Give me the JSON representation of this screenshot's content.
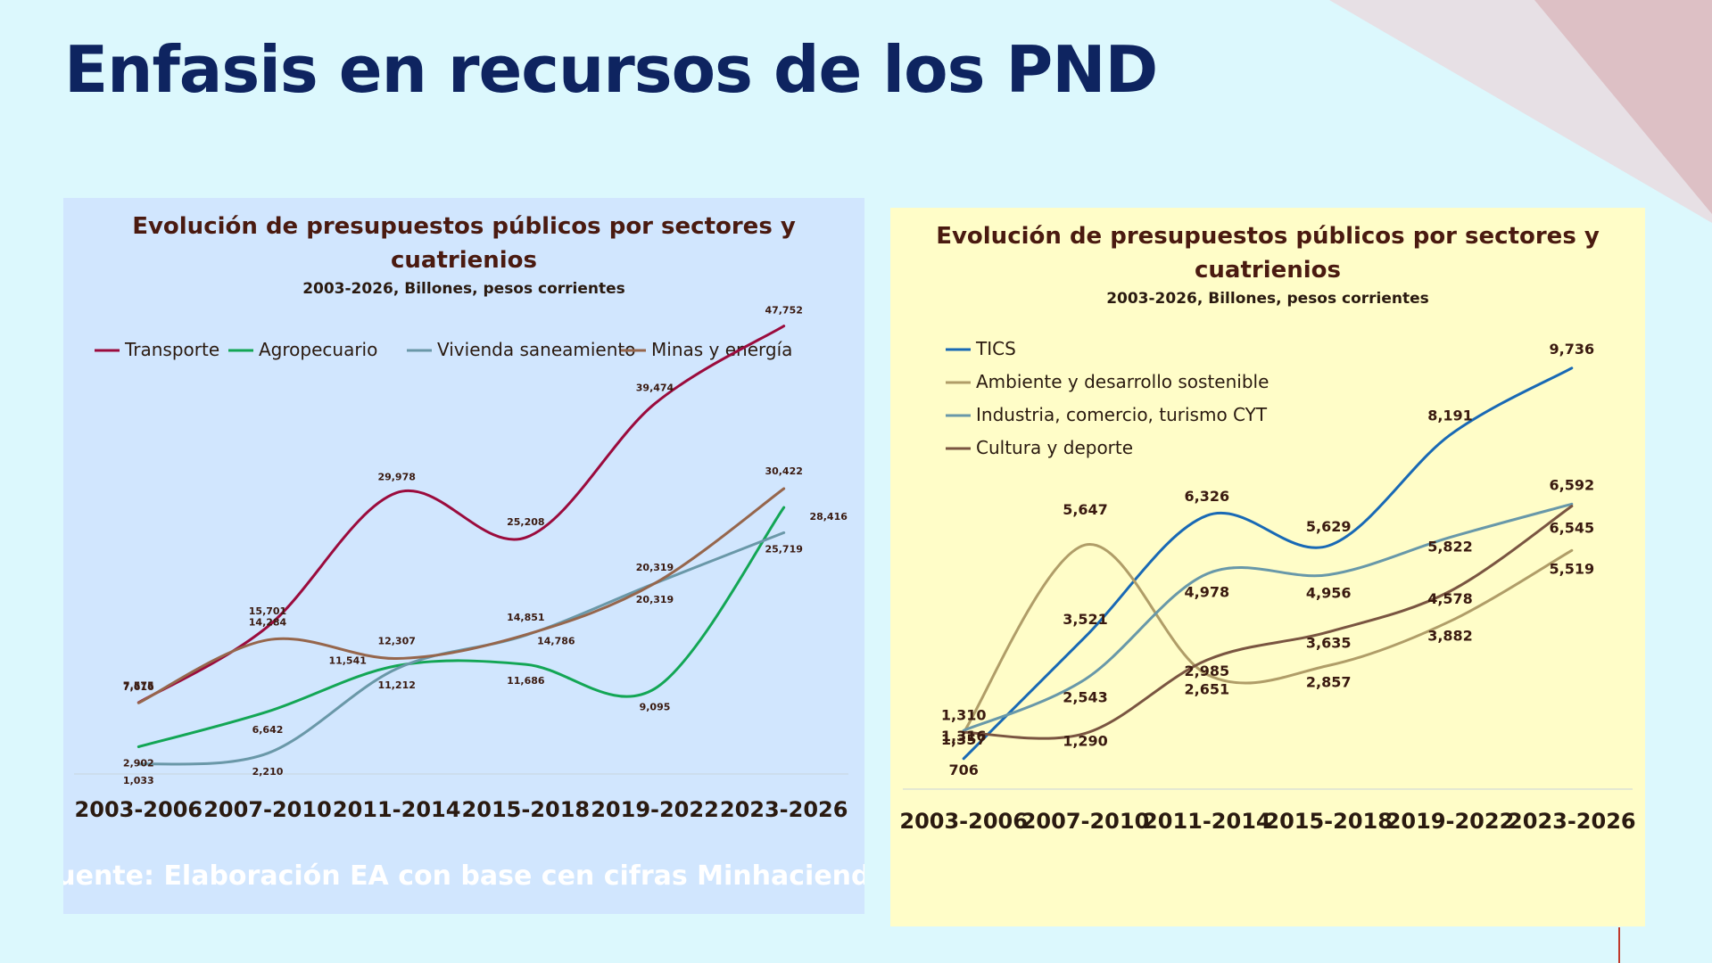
{
  "slide": {
    "title": "Enfasis en recursos de los PND"
  },
  "chart_data": [
    {
      "type": "line",
      "title": "Evolución de presupuestos públicos por sectores y cuatrienios",
      "subtitle": "2003-2026, Billones, pesos corrientes",
      "categories": [
        "2003-2006",
        "2007-2010",
        "2011-2014",
        "2015-2018",
        "2019-2022",
        "2023-2026"
      ],
      "ylim": [
        0,
        50000
      ],
      "grid": false,
      "legend": "top",
      "series": [
        {
          "name": "Transporte",
          "color": "#9b0b3d",
          "values": [
            7616,
            15701,
            29978,
            25208,
            39474,
            47752
          ],
          "labels": [
            "7,616",
            "15,701",
            "29,978",
            "25,208",
            "39,474",
            "47,752"
          ]
        },
        {
          "name": "Agropecuario",
          "color": "#13a655",
          "values": [
            2902,
            6642,
            11541,
            11686,
            9095,
            28416
          ],
          "labels": [
            "2,902",
            "6,642",
            "11,541",
            "11,686",
            "9,095",
            "28,416"
          ]
        },
        {
          "name": "Vivienda saneamiento",
          "color": "#6a98a8",
          "values": [
            1033,
            2210,
            11212,
            14786,
            20319,
            25719
          ],
          "labels": [
            "1,033",
            "2,210",
            "11,212",
            "14,786",
            "20,319",
            "25,719"
          ]
        },
        {
          "name": "Minas y energía",
          "color": "#96664c",
          "values": [
            7575,
            14284,
            12307,
            14851,
            20319,
            30422
          ],
          "labels": [
            "7,575",
            "14,284",
            "12,307",
            "14,851",
            "20,319",
            "30,422"
          ]
        }
      ],
      "annotation": "Fuente: Elaboración EA con base cen cifras Minhacienda"
    },
    {
      "type": "line",
      "title": "Evolución de presupuestos públicos por sectores y cuatrienios",
      "subtitle": "2003-2026, Billones, pesos corrientes",
      "categories": [
        "2003-2006",
        "2007-2010",
        "2011-2014",
        "2015-2018",
        "2019-2022",
        "2023-2026"
      ],
      "ylim": [
        0,
        12000
      ],
      "grid": false,
      "legend": "top-left",
      "series": [
        {
          "name": "TICS",
          "color": "#1969b5",
          "values": [
            706,
            3521,
            6326,
            5629,
            8191,
            9736
          ],
          "labels": [
            "706",
            "3,521",
            "6,326",
            "5,629",
            "8,191",
            "9,736"
          ]
        },
        {
          "name": "Ambiente y desarrollo sostenible",
          "color": "#b09d68",
          "values": [
            1310,
            5647,
            2651,
            2857,
            3882,
            5519
          ],
          "labels": [
            "1,310",
            "5,647",
            "2,651",
            "2,857",
            "3,882",
            "5,519"
          ]
        },
        {
          "name": "Industria, comercio, turismo CYT",
          "color": "#6898a9",
          "values": [
            1357,
            2543,
            4978,
            4956,
            5822,
            6592
          ],
          "labels": [
            "1,357",
            "2,543",
            "4,978",
            "4,956",
            "5,822",
            "6,592"
          ]
        },
        {
          "name": "Cultura y deporte",
          "color": "#7a5541",
          "values": [
            1316,
            1290,
            2985,
            3635,
            4578,
            6545
          ],
          "labels": [
            "1,316",
            "1,290",
            "2,985",
            "3,635",
            "4,578",
            "6,545"
          ]
        }
      ]
    }
  ]
}
